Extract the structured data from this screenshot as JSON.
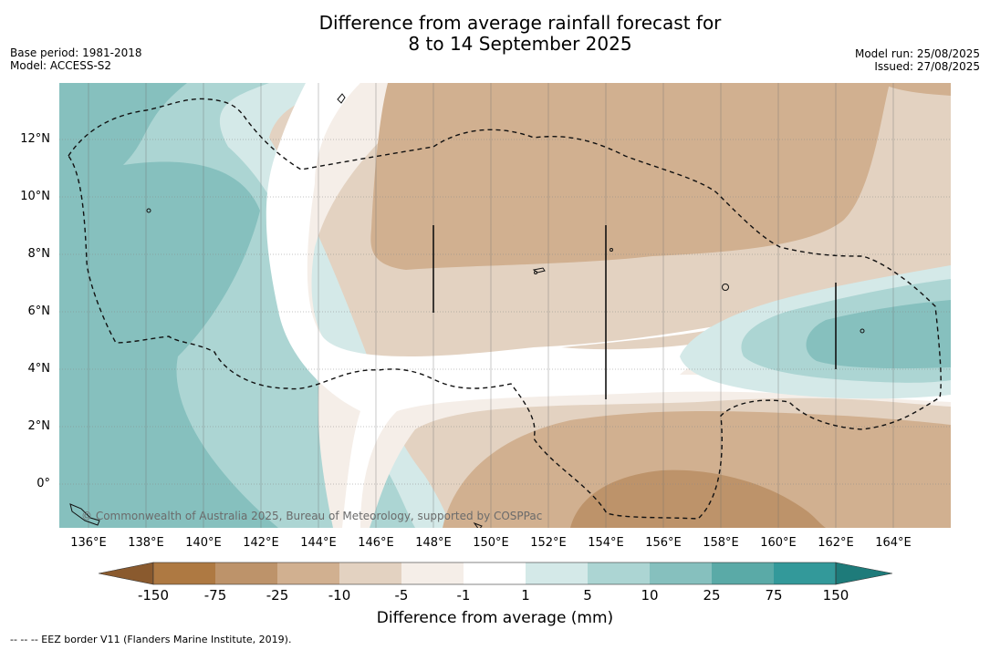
{
  "header": {
    "title_line1": "Difference from average rainfall forecast for",
    "title_line2": "8 to 14 September 2025",
    "base_period": "Base period: 1981-2018",
    "model": "Model: ACCESS-S2",
    "model_run": "Model run: 25/08/2025",
    "issued": "Issued: 27/08/2025"
  },
  "map": {
    "lat_labels": [
      "12°N",
      "10°N",
      "8°N",
      "6°N",
      "4°N",
      "2°N",
      "0°"
    ],
    "lon_labels": [
      "136°E",
      "138°E",
      "140°E",
      "142°E",
      "144°E",
      "146°E",
      "148°E",
      "150°E",
      "152°E",
      "154°E",
      "156°E",
      "158°E",
      "160°E",
      "162°E",
      "164°E"
    ],
    "lon_range": [
      135,
      166
    ],
    "lat_range": [
      -1.5,
      14
    ],
    "copyright": "© Commonwealth of Australia 2025, Bureau of Meteorology, supported by COSPPac"
  },
  "colorbar": {
    "ticks": [
      "-150",
      "-75",
      "-25",
      "-10",
      "-5",
      "-1",
      "1",
      "5",
      "10",
      "25",
      "75",
      "150"
    ],
    "colors": [
      "#8a5a2e",
      "#ae7942",
      "#bd936a",
      "#d1b090",
      "#e3d2c1",
      "#f5eee8",
      "#ffffff",
      "#d4e9e8",
      "#acd5d3",
      "#86c0be",
      "#5aaaa7",
      "#33999a",
      "#1e7b7a"
    ],
    "label": "Difference from average (mm)"
  },
  "footnote": "--  --  -- EEZ border V11 (Flanders Marine Institute, 2019)."
}
